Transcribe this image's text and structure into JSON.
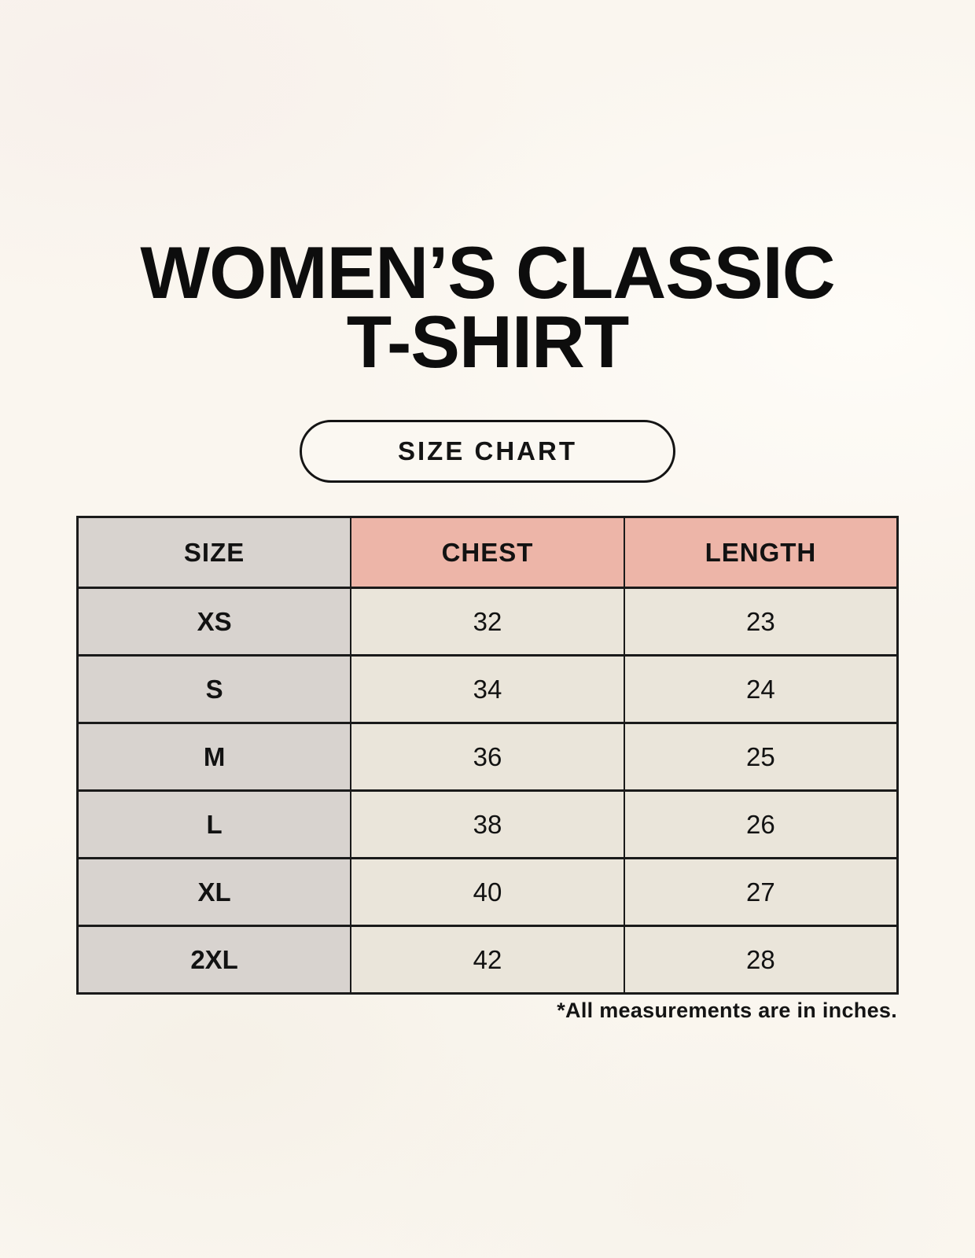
{
  "header": {
    "title_line1": "WOMEN’S CLASSIC",
    "title_line2": "T-SHIRT",
    "badge_label": "SIZE CHART"
  },
  "table": {
    "columns": [
      "SIZE",
      "CHEST",
      "LENGTH"
    ],
    "rows": [
      {
        "size": "XS",
        "chest": "32",
        "length": "23"
      },
      {
        "size": "S",
        "chest": "34",
        "length": "24"
      },
      {
        "size": "M",
        "chest": "36",
        "length": "25"
      },
      {
        "size": "L",
        "chest": "38",
        "length": "26"
      },
      {
        "size": "XL",
        "chest": "40",
        "length": "27"
      },
      {
        "size": "2XL",
        "chest": "42",
        "length": "28"
      }
    ]
  },
  "footnote": "*All measurements are in inches.",
  "colors": {
    "background": "#FAF6EF",
    "size_column_bg": "#D8D3CF",
    "measure_header_bg": "#EDB5A8",
    "value_cell_bg": "#EAE5DA",
    "border": "#1A1A1A",
    "text": "#121212"
  },
  "chart_data": {
    "type": "table",
    "title": "WOMEN’S CLASSIC T-SHIRT SIZE CHART",
    "columns": [
      "SIZE",
      "CHEST",
      "LENGTH"
    ],
    "rows": [
      [
        "XS",
        32,
        23
      ],
      [
        "S",
        34,
        24
      ],
      [
        "M",
        36,
        25
      ],
      [
        "L",
        38,
        26
      ],
      [
        "XL",
        40,
        27
      ],
      [
        "2XL",
        42,
        28
      ]
    ],
    "units_note": "*All measurements are in inches."
  }
}
